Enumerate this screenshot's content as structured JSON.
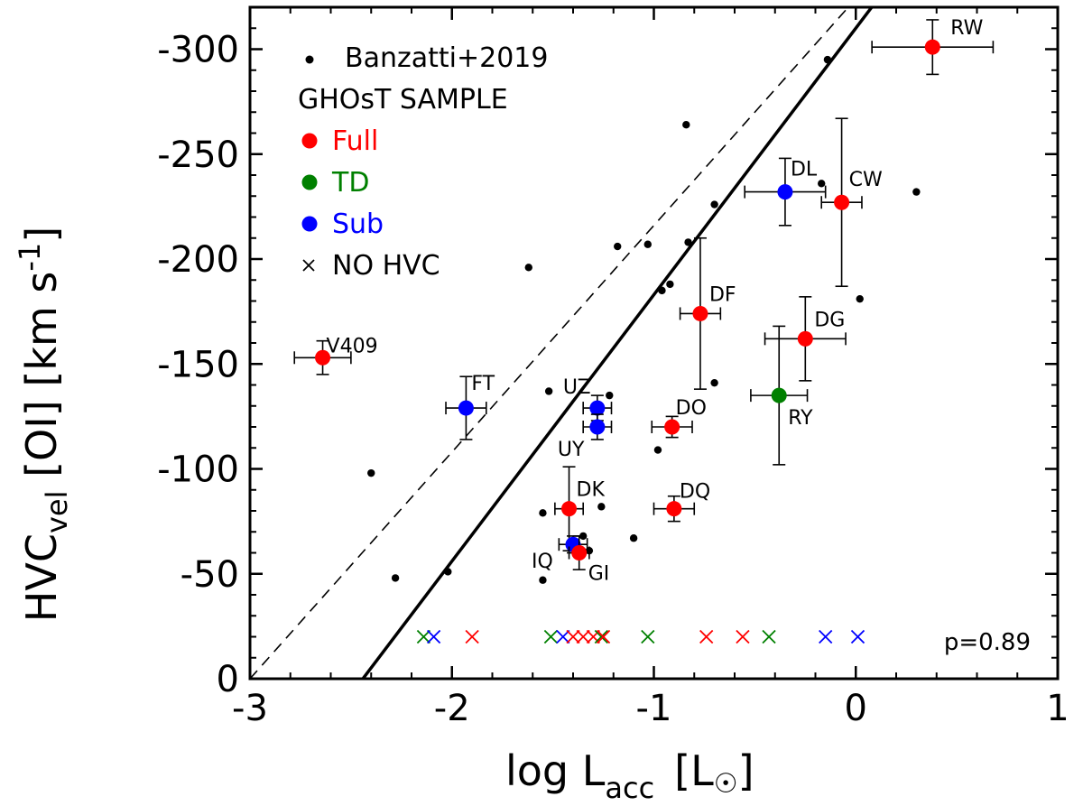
{
  "chart_data": {
    "type": "scatter",
    "xlabel_main": "log L",
    "xlabel_sub": "acc",
    "xlabel_unit": "[L",
    "xlabel_unit_close": "]",
    "ylabel_main": "HVC",
    "ylabel_sub": "vel",
    "ylabel_rest": " [OI] [km s",
    "ylabel_sup": "-1",
    "ylabel_close": "]",
    "xlim": [
      -3,
      1
    ],
    "ylim": [
      0,
      -320
    ],
    "x_ticks": [
      {
        "value": -3,
        "label": "-3"
      },
      {
        "value": -2,
        "label": "-2"
      },
      {
        "value": -1,
        "label": "-1"
      },
      {
        "value": 0,
        "label": "0"
      },
      {
        "value": 1,
        "label": "1"
      }
    ],
    "y_ticks": [
      {
        "value": 0,
        "label": "0"
      },
      {
        "value": -50,
        "label": "-50"
      },
      {
        "value": -100,
        "label": "-100"
      },
      {
        "value": -150,
        "label": "-150"
      },
      {
        "value": -200,
        "label": "-200"
      },
      {
        "value": -250,
        "label": "-250"
      },
      {
        "value": -300,
        "label": "-300"
      }
    ],
    "legend": [
      {
        "kind": "dot",
        "label": "Banzatti+2019",
        "color": "#000000"
      },
      {
        "kind": "header",
        "label": "GHOsT SAMPLE",
        "color": "#000000"
      },
      {
        "kind": "circle",
        "label": "Full",
        "color": "#ff0000"
      },
      {
        "kind": "circle",
        "label": "TD",
        "color": "#008000"
      },
      {
        "kind": "circle",
        "label": "Sub",
        "color": "#0000ff"
      },
      {
        "kind": "cross",
        "label": "NO HVC",
        "color": "#000000"
      }
    ],
    "annotation": "p=0.89",
    "banzatti": [
      [
        -2.4,
        -98
      ],
      [
        -2.28,
        -48
      ],
      [
        -2.02,
        -51
      ],
      [
        -1.62,
        -196
      ],
      [
        -1.52,
        -137
      ],
      [
        -1.55,
        -47
      ],
      [
        -1.55,
        -79
      ],
      [
        -1.42,
        -80
      ],
      [
        -1.35,
        -68
      ],
      [
        -1.32,
        -61
      ],
      [
        -1.26,
        -82
      ],
      [
        -1.22,
        -135
      ],
      [
        -1.18,
        -206
      ],
      [
        -1.1,
        -67
      ],
      [
        -1.03,
        -207
      ],
      [
        -0.98,
        -109
      ],
      [
        -0.96,
        -185
      ],
      [
        -0.92,
        -188
      ],
      [
        -0.84,
        -264
      ],
      [
        -0.83,
        -208
      ],
      [
        -0.7,
        -226
      ],
      [
        -0.7,
        -141
      ],
      [
        -0.14,
        -295
      ],
      [
        -0.17,
        -236
      ],
      [
        0.02,
        -181
      ],
      [
        0.3,
        -232
      ]
    ],
    "ghost": [
      {
        "name": "RW",
        "group": "Full",
        "x": 0.38,
        "y": -301,
        "xerr": 0.3,
        "yerr": 13,
        "lx": 20,
        "ly": -14
      },
      {
        "name": "DL",
        "group": "Sub",
        "x": -0.35,
        "y": -232,
        "xerr": 0.2,
        "yerr": 16,
        "lx": 6,
        "ly": -18
      },
      {
        "name": "CW",
        "group": "Full",
        "x": -0.07,
        "y": -227,
        "xerr": 0.1,
        "yerr": 40,
        "lx": 8,
        "ly": -18
      },
      {
        "name": "DF",
        "group": "Full",
        "x": -0.77,
        "y": -174,
        "xerr": 0.1,
        "yerr": 36,
        "lx": 10,
        "ly": -14
      },
      {
        "name": "DG",
        "group": "Full",
        "x": -0.25,
        "y": -162,
        "xerr": 0.2,
        "yerr": 20,
        "lx": 10,
        "ly": -14
      },
      {
        "name": "V409",
        "group": "Full",
        "x": -2.64,
        "y": -153,
        "xerr": 0.14,
        "yerr": 8,
        "lx": 4,
        "ly": -6
      },
      {
        "name": "FT",
        "group": "Sub",
        "x": -1.93,
        "y": -129,
        "xerr": 0.1,
        "yerr": 15,
        "lx": 6,
        "ly": -20
      },
      {
        "name": "UZ",
        "group": "Sub",
        "x": -1.28,
        "y": -129,
        "xerr": 0.07,
        "yerr": 6,
        "lx": -38,
        "ly": -16
      },
      {
        "name": "UY",
        "group": "Sub",
        "x": -1.28,
        "y": -120,
        "xerr": 0.07,
        "yerr": 6,
        "lx": -44,
        "ly": 32
      },
      {
        "name": "RY",
        "group": "TD",
        "x": -0.38,
        "y": -135,
        "xerr": 0.14,
        "yerr": 33,
        "lx": 10,
        "ly": 32
      },
      {
        "name": "DO",
        "group": "Full",
        "x": -0.91,
        "y": -120,
        "xerr": 0.1,
        "yerr": 5,
        "lx": 4,
        "ly": -14
      },
      {
        "name": "DK",
        "group": "Full",
        "x": -1.42,
        "y": -81,
        "xerr": 0.07,
        "yerr": 20,
        "lx": 8,
        "ly": -14
      },
      {
        "name": "DQ",
        "group": "Full",
        "x": -0.9,
        "y": -81,
        "xerr": 0.1,
        "yerr": 6,
        "lx": 6,
        "ly": -12
      },
      {
        "name": "IQ",
        "group": "Sub",
        "x": -1.4,
        "y": -64,
        "xerr": 0.07,
        "yerr": 4,
        "lx": -46,
        "ly": 26
      },
      {
        "name": "GI",
        "group": "Full",
        "x": -1.37,
        "y": -60,
        "xerr": 0.05,
        "yerr": 8,
        "lx": 10,
        "ly": 30
      }
    ],
    "no_hvc": [
      {
        "x": -2.14,
        "group": "TD"
      },
      {
        "x": -2.09,
        "group": "Sub"
      },
      {
        "x": -1.9,
        "group": "Full"
      },
      {
        "x": -1.51,
        "group": "TD"
      },
      {
        "x": -1.45,
        "group": "Sub"
      },
      {
        "x": -1.4,
        "group": "Full"
      },
      {
        "x": -1.35,
        "group": "Full"
      },
      {
        "x": -1.3,
        "group": "Full"
      },
      {
        "x": -1.26,
        "group": "TD"
      },
      {
        "x": -1.25,
        "group": "Full"
      },
      {
        "x": -1.03,
        "group": "TD"
      },
      {
        "x": -0.74,
        "group": "Full"
      },
      {
        "x": -0.56,
        "group": "Full"
      },
      {
        "x": -0.43,
        "group": "TD"
      },
      {
        "x": -0.15,
        "group": "Sub"
      },
      {
        "x": 0.01,
        "group": "Sub"
      }
    ],
    "no_hvc_y": -20,
    "fit_solid": {
      "slope": -127,
      "intercept": -310
    },
    "fit_dashed": {
      "slope": -108,
      "intercept": -324
    },
    "colors": {
      "Full": "#ff0000",
      "TD": "#008000",
      "Sub": "#0000ff",
      "Banzatti": "#000000"
    }
  }
}
